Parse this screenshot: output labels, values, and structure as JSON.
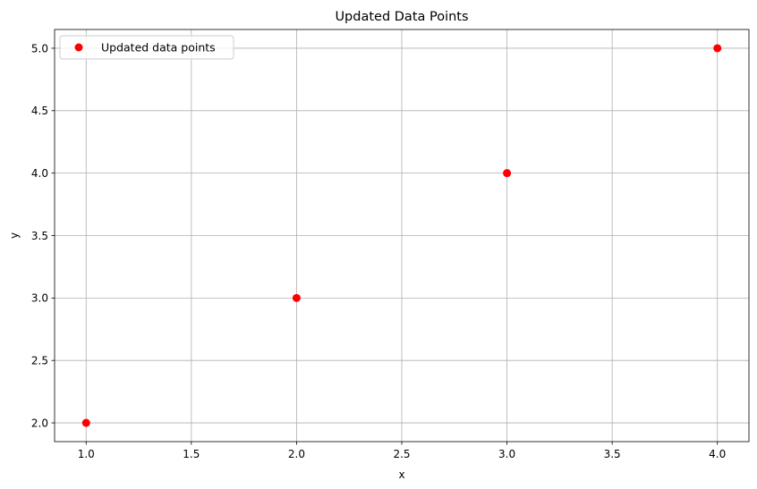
{
  "chart_data": {
    "type": "scatter",
    "title": "Updated Data Points",
    "xlabel": "x",
    "ylabel": "y",
    "xlim": [
      0.85,
      4.15
    ],
    "ylim": [
      1.85,
      5.15
    ],
    "xticks": [
      1.0,
      1.5,
      2.0,
      2.5,
      3.0,
      3.5,
      4.0
    ],
    "xtick_labels": [
      "1.0",
      "1.5",
      "2.0",
      "2.5",
      "3.0",
      "3.5",
      "4.0"
    ],
    "yticks": [
      2.0,
      2.5,
      3.0,
      3.5,
      4.0,
      4.5,
      5.0
    ],
    "ytick_labels": [
      "2.0",
      "2.5",
      "3.0",
      "3.5",
      "4.0",
      "4.5",
      "5.0"
    ],
    "grid": true,
    "legend_position": "top-left",
    "series": [
      {
        "name": "Updated data points",
        "color": "#ff0000",
        "x": [
          1,
          2,
          3,
          4
        ],
        "y": [
          2,
          3,
          4,
          5
        ]
      }
    ]
  }
}
